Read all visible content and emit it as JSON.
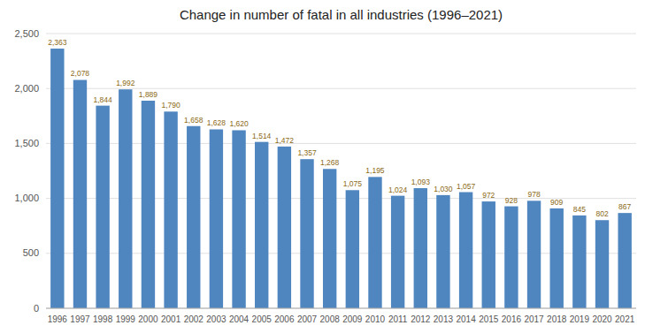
{
  "chart_data": {
    "type": "bar",
    "title": "Change in number of fatal in all industries (1996–2021)",
    "categories": [
      "1996",
      "1997",
      "1998",
      "1999",
      "2000",
      "2001",
      "2002",
      "2003",
      "2004",
      "2005",
      "2006",
      "2007",
      "2008",
      "2009",
      "2010",
      "2011",
      "2012",
      "2013",
      "2014",
      "2015",
      "2016",
      "2017",
      "2018",
      "2019",
      "2020",
      "2021"
    ],
    "values": [
      2363,
      2078,
      1844,
      1992,
      1889,
      1790,
      1658,
      1628,
      1620,
      1514,
      1472,
      1357,
      1268,
      1075,
      1195,
      1024,
      1093,
      1030,
      1057,
      972,
      928,
      978,
      909,
      845,
      802,
      867
    ],
    "value_labels": [
      "2,363",
      "2,078",
      "1,844",
      "1,992",
      "1,889",
      "1,790",
      "1,658",
      "1,628",
      "1,620",
      "1,514",
      "1,472",
      "1,357",
      "1,268",
      "1,075",
      "1,195",
      "1,024",
      "1,093",
      "1,030",
      "1,057",
      "972",
      "928",
      "978",
      "909",
      "845",
      "802",
      "867"
    ],
    "color": "#4f86c0",
    "ylim": [
      0,
      2500
    ],
    "yticks": [
      0,
      500,
      {
        "value": 1000,
        "label": "1,000"
      },
      {
        "value": 1500,
        "label": "1,500"
      },
      {
        "value": 2000,
        "label": "2,000"
      },
      {
        "value": 2500,
        "label": "2,500"
      }
    ],
    "grid": true,
    "data_labels": true
  }
}
